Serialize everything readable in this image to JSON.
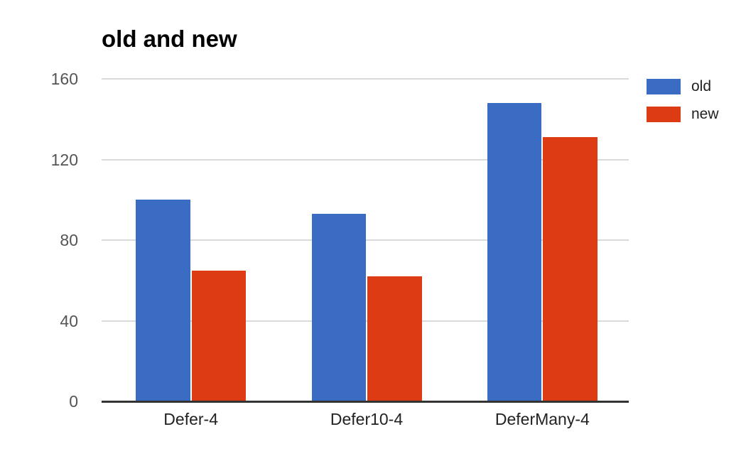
{
  "chart_data": {
    "type": "bar",
    "title": "old and new",
    "categories": [
      "Defer-4",
      "Defer10-4",
      "DeferMany-4"
    ],
    "series": [
      {
        "name": "old",
        "color": "#3b6cc4",
        "values": [
          100,
          93,
          148
        ]
      },
      {
        "name": "new",
        "color": "#dc3b14",
        "values": [
          65,
          62,
          131
        ]
      }
    ],
    "xlabel": "",
    "ylabel": "",
    "ylim": [
      0,
      160
    ],
    "yticks": [
      0,
      40,
      80,
      120,
      160
    ],
    "grid": true,
    "legend_position": "right"
  },
  "legend": {
    "items": [
      {
        "label": "old",
        "color": "#3b6cc4"
      },
      {
        "label": "new",
        "color": "#dc3b14"
      }
    ]
  },
  "colors": {
    "background": "#ffffff",
    "grid": "#d9d9d9",
    "axis": "#333333",
    "tick_text": "#555555",
    "category_text": "#222222",
    "title_text": "#000000"
  }
}
